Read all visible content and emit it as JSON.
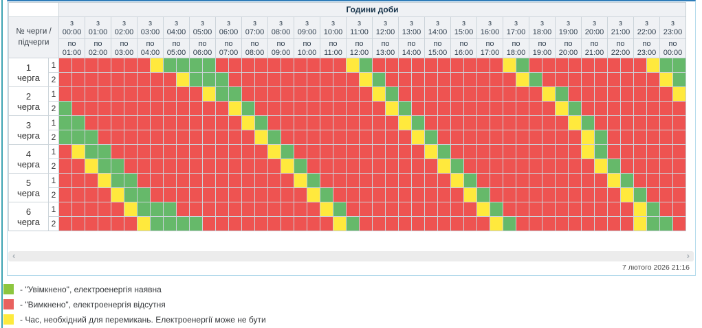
{
  "page": {
    "edge_color": "#3aa2b2",
    "panel_border_color": "#b5dbec",
    "panel_accent_color": "#2d7cb9"
  },
  "header": {
    "corner_label": "№ черги / підчерги",
    "hours_title": "Години доби",
    "from_prefix": "з",
    "to_prefix": "по",
    "hours": [
      {
        "from": "00:00",
        "to": "01:00"
      },
      {
        "from": "01:00",
        "to": "02:00"
      },
      {
        "from": "02:00",
        "to": "03:00"
      },
      {
        "from": "03:00",
        "to": "04:00"
      },
      {
        "from": "04:00",
        "to": "05:00"
      },
      {
        "from": "05:00",
        "to": "06:00"
      },
      {
        "from": "06:00",
        "to": "07:00"
      },
      {
        "from": "07:00",
        "to": "08:00"
      },
      {
        "from": "08:00",
        "to": "09:00"
      },
      {
        "from": "09:00",
        "to": "10:00"
      },
      {
        "from": "10:00",
        "to": "11:00"
      },
      {
        "from": "11:00",
        "to": "12:00"
      },
      {
        "from": "12:00",
        "to": "13:00"
      },
      {
        "from": "13:00",
        "to": "14:00"
      },
      {
        "from": "14:00",
        "to": "15:00"
      },
      {
        "from": "15:00",
        "to": "16:00"
      },
      {
        "from": "16:00",
        "to": "17:00"
      },
      {
        "from": "17:00",
        "to": "18:00"
      },
      {
        "from": "18:00",
        "to": "19:00"
      },
      {
        "from": "19:00",
        "to": "20:00"
      },
      {
        "from": "20:00",
        "to": "21:00"
      },
      {
        "from": "21:00",
        "to": "22:00"
      },
      {
        "from": "22:00",
        "to": "23:00"
      },
      {
        "from": "23:00",
        "to": "00:00"
      }
    ]
  },
  "cell_states": {
    "R": {
      "name": "off",
      "color": "#ee5351"
    },
    "G": {
      "name": "on",
      "color": "#66b96a"
    },
    "Y": {
      "name": "switching",
      "color": "#ffe93d"
    }
  },
  "queues": [
    {
      "number": "1",
      "word": "черга",
      "sub": [
        {
          "label": "1",
          "cells": "RRRRRRRYGGGGRRRRRRRRRRYGRRRRRRRRRRYGRRRRRRRRRYGG"
        },
        {
          "label": "2",
          "cells": "RRRRRRRRRYGGGRRRRRRRRRRYGRRRRRRRRRRYGRRRRRRRRRYG"
        }
      ]
    },
    {
      "number": "2",
      "word": "черга",
      "sub": [
        {
          "label": "1",
          "cells": "RRRRRRRRRRRYGGRRRRRRRRRRYGRRRRRRRRRRRYGRRRRRRRRY"
        },
        {
          "label": "2",
          "cells": "GRRRRRRRRRRRRYGRRRRRRRRRRYGRRRRRRRRRRRYGRRRRRRRR"
        }
      ]
    },
    {
      "number": "3",
      "word": "черга",
      "sub": [
        {
          "label": "1",
          "cells": "GGRRRRRRRRRRRRYGRRRRRRRRRRYGRRRRRRRRRRRYGRRRRRRR"
        },
        {
          "label": "2",
          "cells": "GGGRRRRRRRRRRRRYGRRRRRRRRRRYGRRRRRRRRRRRYGRRRRRR"
        }
      ]
    },
    {
      "number": "4",
      "word": "черга",
      "sub": [
        {
          "label": "1",
          "cells": "RYGGRRRRRRRRRRRRYGRRRRRRRRRRYGRRRRRRRRRRYGRRRRRR"
        },
        {
          "label": "2",
          "cells": "RRYGGRRRRRRRRRRRRYGRRRRRRRRRRYGRRRRRRRRRRYGRRRRR"
        }
      ]
    },
    {
      "number": "5",
      "word": "черга",
      "sub": [
        {
          "label": "1",
          "cells": "RRRYGGRRRRRRRRRRRRYGRRRRRRRRRRYGRRRRRRRRRRYGRRRR"
        },
        {
          "label": "2",
          "cells": "RRRRYGGRRRRRRRRRRRRYGRRRRRRRRRRYGRRRRRRRRRRYGRRR"
        }
      ]
    },
    {
      "number": "6",
      "word": "черга",
      "sub": [
        {
          "label": "1",
          "cells": "RRRRRYGGGRRRRRRRRRRRYGRRRRRRRRRRYGRRRRRRRRRRYGRR"
        },
        {
          "label": "2",
          "cells": "RRRRRRYGGGGRRRRRRRRRRYGRRRRRRRRRRYGRRRRRRRRRYGGR"
        }
      ]
    }
  ],
  "scrollbar": {
    "left_arrow": "‹",
    "right_arrow": "›"
  },
  "footer": {
    "timestamp": "7 лютого 2026 21:16"
  },
  "legend": [
    {
      "state": "on",
      "color": "#8dc63f",
      "text": "- \"Увімкнено\", електроенергія наявна"
    },
    {
      "state": "off",
      "color": "#e8615e",
      "text": "- \"Вимкнено\", електроенергія відсутня"
    },
    {
      "state": "switching",
      "color": "#fdea3d",
      "text": "- Час, необхідний для перемикань. Електроенергії може не бути"
    }
  ]
}
